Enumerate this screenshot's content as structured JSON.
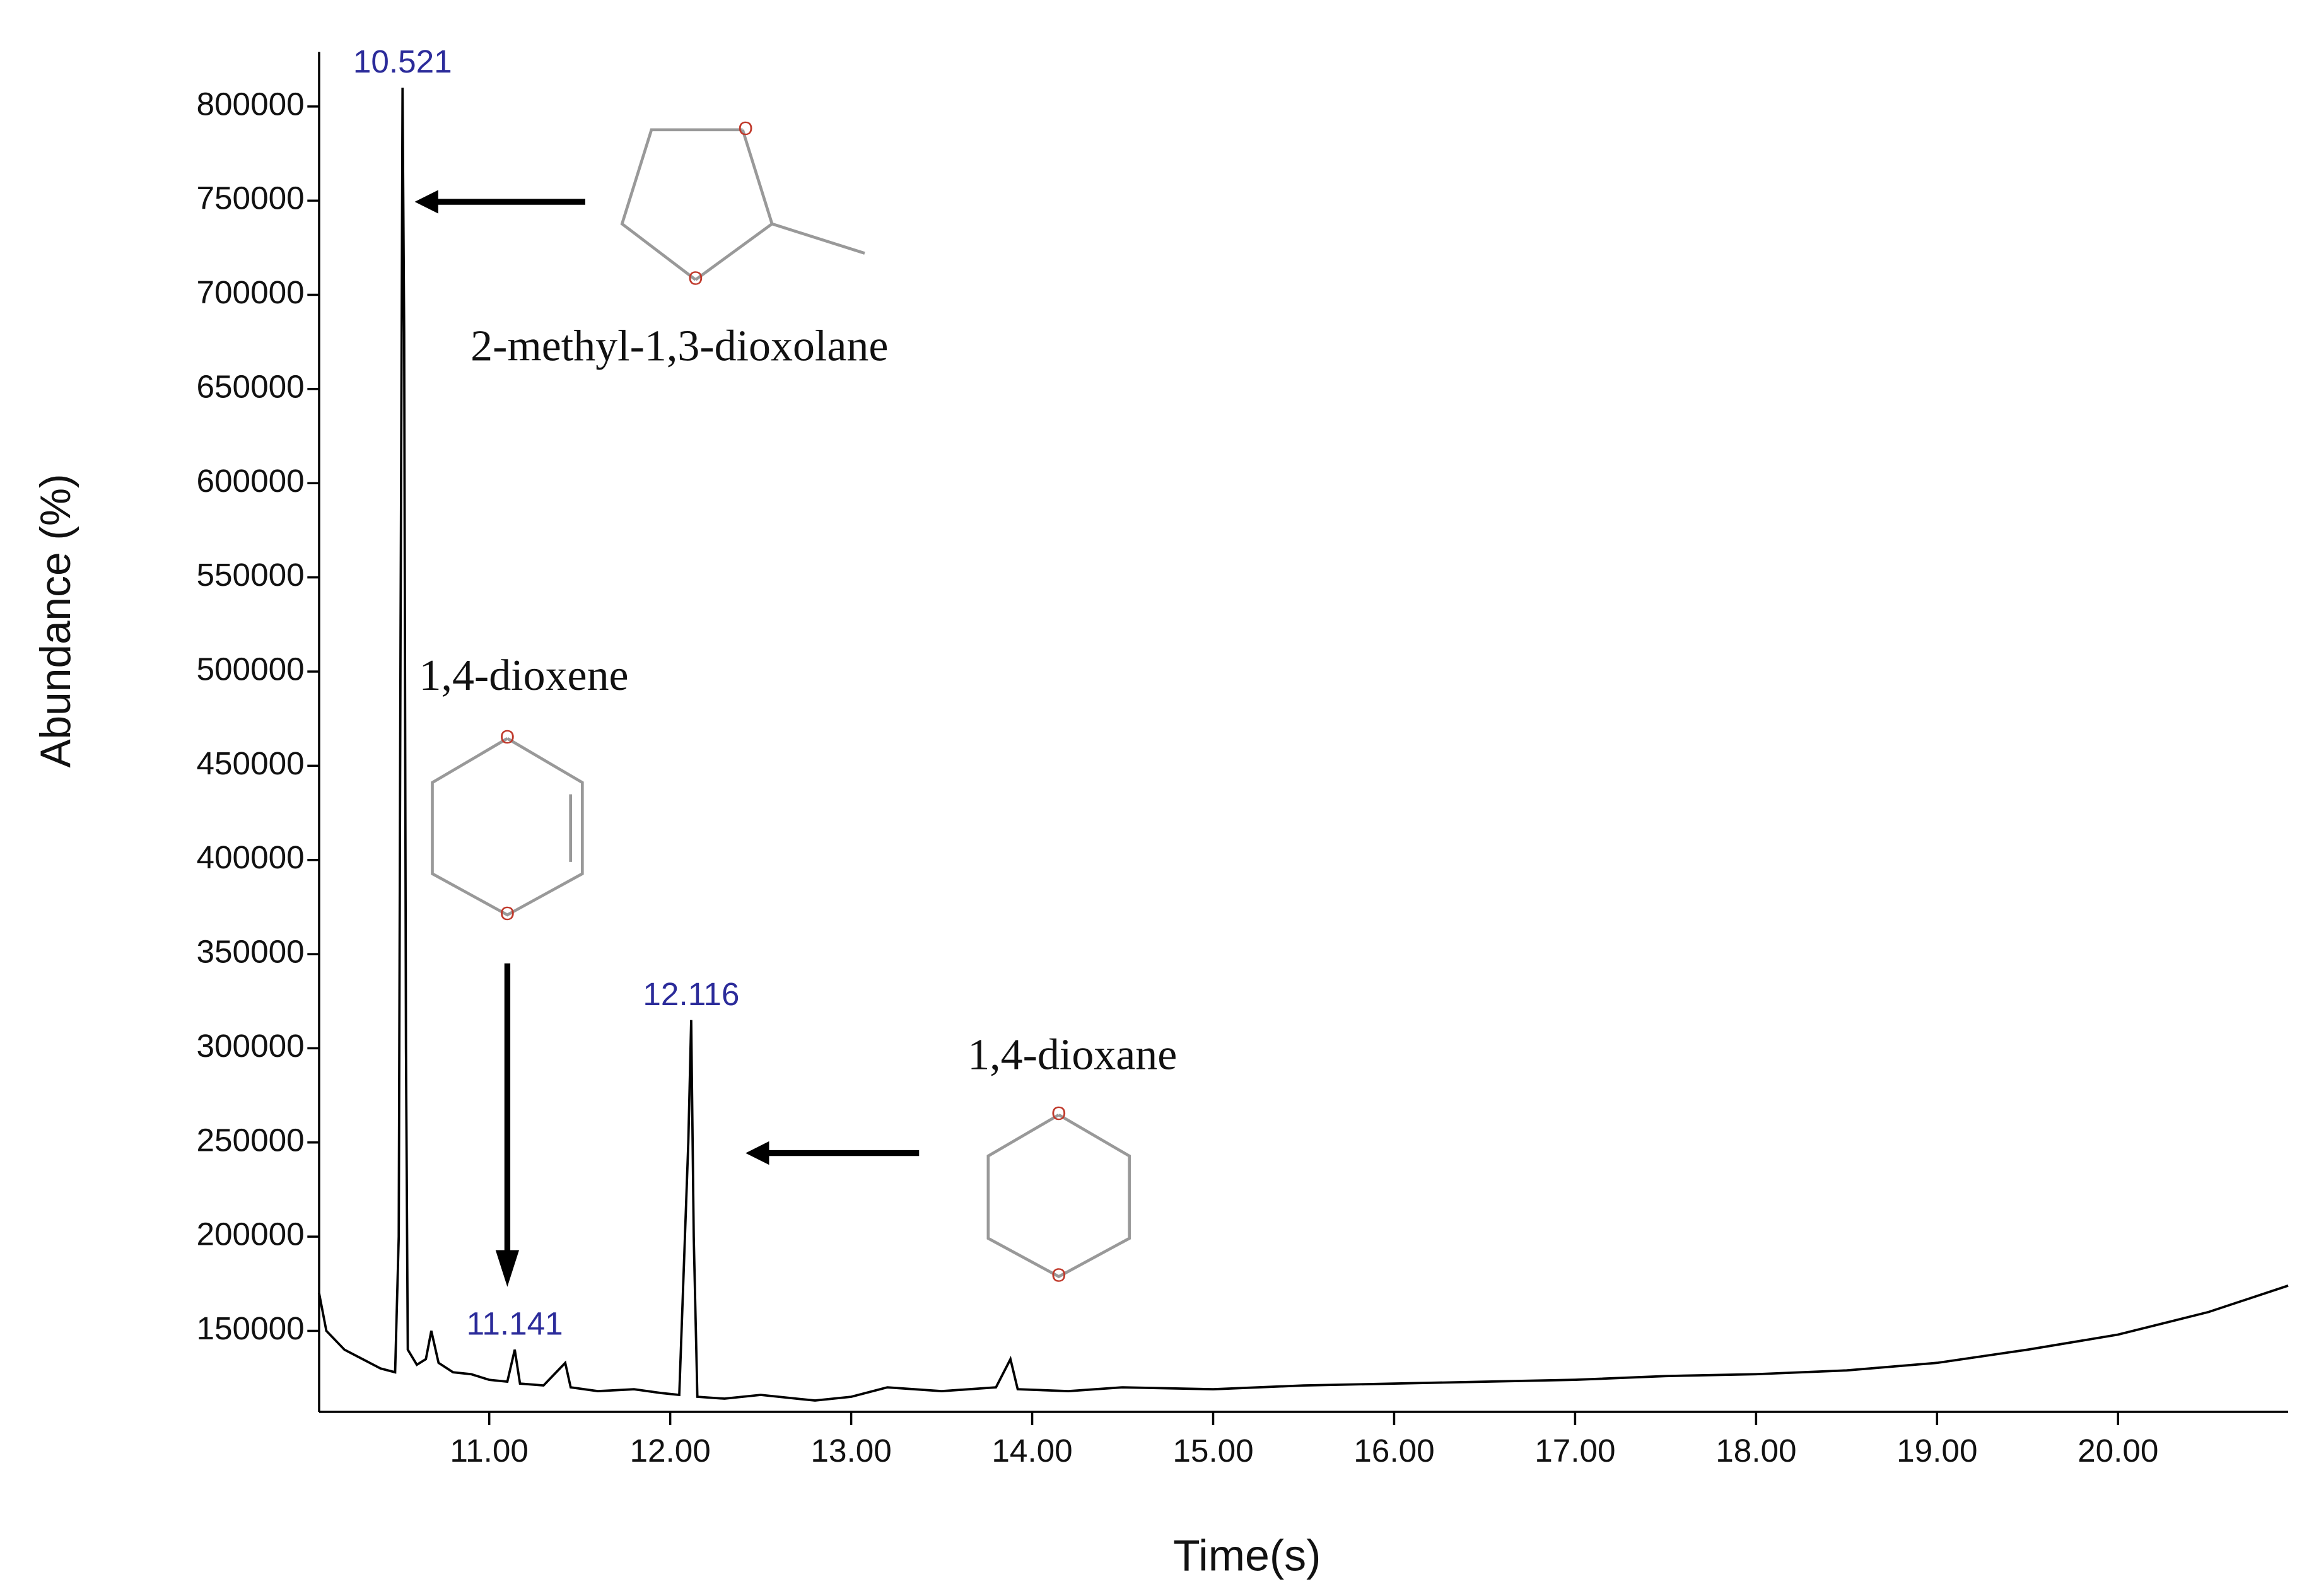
{
  "chart_data": {
    "type": "line",
    "xlabel": "Time(s)",
    "ylabel": "Abundance (%)",
    "color": "#000000",
    "x": [
      10.06,
      10.1,
      10.2,
      10.3,
      10.4,
      10.48,
      10.5,
      10.51,
      10.521,
      10.53,
      10.54,
      10.55,
      10.6,
      10.65,
      10.68,
      10.72,
      10.8,
      10.9,
      11.0,
      11.1,
      11.141,
      11.17,
      11.3,
      11.42,
      11.45,
      11.6,
      11.8,
      11.95,
      12.05,
      12.1,
      12.116,
      12.13,
      12.15,
      12.3,
      12.5,
      12.8,
      13.0,
      13.2,
      13.5,
      13.8,
      13.88,
      13.92,
      14.2,
      14.5,
      15.0,
      15.5,
      16.0,
      16.5,
      17.0,
      17.5,
      18.0,
      18.5,
      19.0,
      19.5,
      20.0,
      20.5,
      20.94
    ],
    "values": [
      170000,
      150000,
      140000,
      135000,
      130000,
      128000,
      200000,
      520000,
      810000,
      680000,
      300000,
      140000,
      132000,
      135000,
      150000,
      133000,
      128000,
      127000,
      124000,
      123000,
      140000,
      122000,
      121000,
      133000,
      120000,
      118000,
      119000,
      117000,
      116000,
      250000,
      315000,
      200000,
      115000,
      114000,
      116000,
      113000,
      115000,
      120000,
      118000,
      120000,
      135000,
      119000,
      118000,
      120000,
      119000,
      121000,
      122000,
      123000,
      124000,
      126000,
      127000,
      129000,
      133000,
      140000,
      148000,
      160000,
      174000
    ],
    "peaks": [
      10.521,
      11.141,
      12.116
    ],
    "xlim": [
      10.06,
      20.94
    ],
    "ylim": [
      107000,
      829000
    ],
    "xticks": [
      {
        "value": 11,
        "label": "11.00"
      },
      {
        "value": 12,
        "label": "12.00"
      },
      {
        "value": 13,
        "label": "13.00"
      },
      {
        "value": 14,
        "label": "14.00"
      },
      {
        "value": 15,
        "label": "15.00"
      },
      {
        "value": 16,
        "label": "16.00"
      },
      {
        "value": 17,
        "label": "17.00"
      },
      {
        "value": 18,
        "label": "18.00"
      },
      {
        "value": 19,
        "label": "19.00"
      },
      {
        "value": 20,
        "label": "20.00"
      }
    ],
    "yticks": [
      150000,
      200000,
      250000,
      300000,
      350000,
      400000,
      450000,
      500000,
      550000,
      600000,
      650000,
      700000,
      750000,
      800000
    ],
    "structures": [
      {
        "name": "2-methyl-1,3-dioxolane",
        "atoms": [
          "O",
          "O"
        ]
      },
      {
        "name": "1,4-dioxene",
        "atoms": [
          "O",
          "O"
        ]
      },
      {
        "name": "1,4-dioxane",
        "atoms": [
          "O",
          "O"
        ]
      }
    ]
  }
}
